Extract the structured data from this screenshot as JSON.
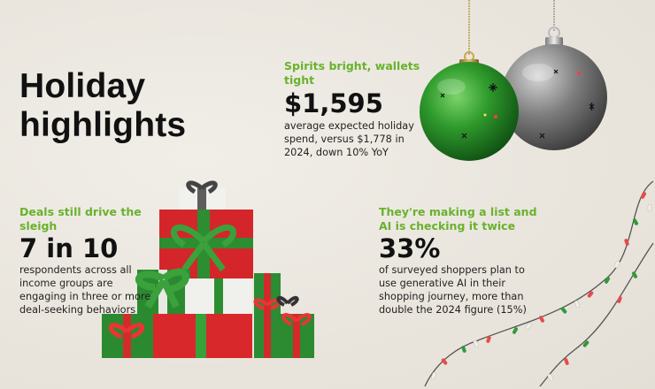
{
  "title_line1": "Holiday",
  "title_line2": "highlights",
  "stats": [
    {
      "kicker": "Spirits bright, wallets tight",
      "value": "$1,595",
      "description": "average expected holiday spend, versus $1,778 in 2024, down 10% YoY"
    },
    {
      "kicker": "Deals still drive the sleigh",
      "value": "7 in 10",
      "description": "respondents across all income groups are engaging in three or more deal-seeking behaviors"
    },
    {
      "kicker_line1": "They're making a list and",
      "kicker_line2": "AI is checking it twice",
      "value": "33%",
      "description": "of surveyed shoppers plan to use generative AI in their shopping journey, more than double the 2024 figure (15%)"
    }
  ],
  "colors": {
    "accent_green": "#69b22c",
    "background": "#ece8e1",
    "ornament_green": "#2f8f2a",
    "ornament_silver": "#8a8a8a",
    "gift_red": "#d9262b",
    "gift_green": "#2f8f3a"
  },
  "illustrations": [
    "christmas-ornaments",
    "gift-stack",
    "string-lights"
  ]
}
